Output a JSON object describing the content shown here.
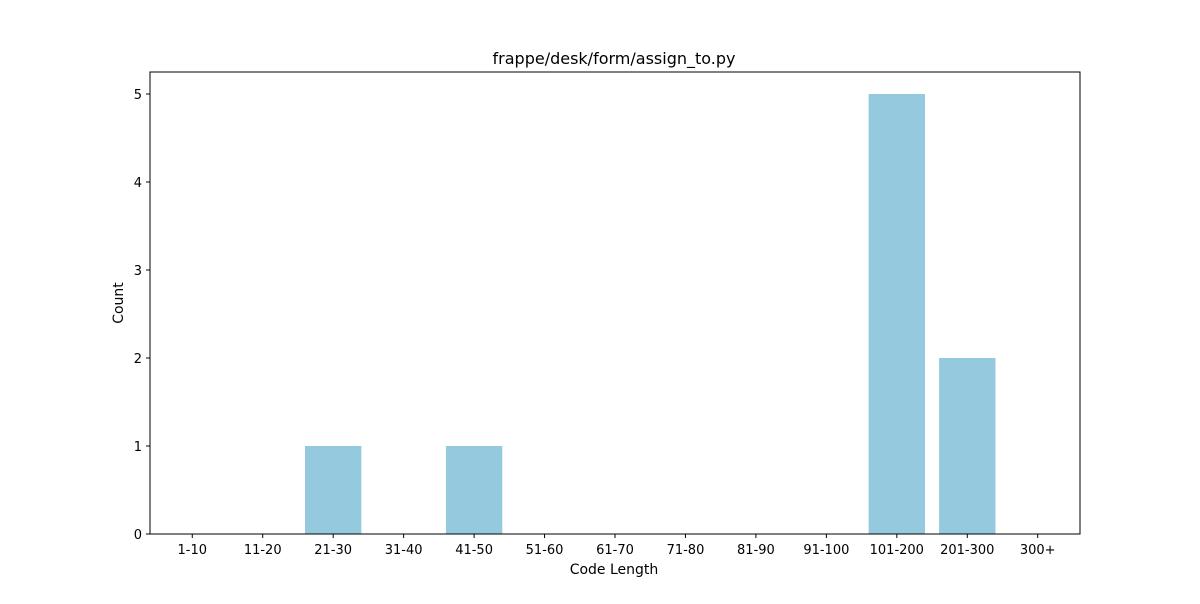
{
  "chart_data": {
    "type": "bar",
    "title": "frappe/desk/form/assign_to.py",
    "xlabel": "Code Length",
    "ylabel": "Count",
    "categories": [
      "1-10",
      "11-20",
      "21-30",
      "31-40",
      "41-50",
      "51-60",
      "61-70",
      "71-80",
      "81-90",
      "91-100",
      "101-200",
      "201-300",
      "300+"
    ],
    "values": [
      0,
      0,
      1,
      0,
      1,
      0,
      0,
      0,
      0,
      0,
      5,
      2,
      0
    ],
    "ylim": [
      0,
      5.25
    ],
    "yticks": [
      0,
      1,
      2,
      3,
      4,
      5
    ],
    "bar_color": "#95c9dd",
    "grid": false,
    "legend": "none"
  }
}
